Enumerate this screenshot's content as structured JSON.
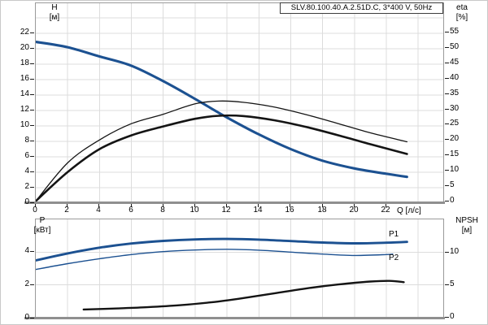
{
  "title_box": "SLV.80.100.40.A.2.51D.C, 3*400 V, 50Hz",
  "colors": {
    "curve_blue": "#1c5191",
    "curve_black": "#141414",
    "grid": "#dcdcdc",
    "plot_border": "#9a9a9a",
    "axis_gray": "#8f8f8f",
    "tick": "#1a1a1a",
    "background": "#ffffff"
  },
  "axes": {
    "h": {
      "title": "H",
      "unit": "[м]"
    },
    "eta": {
      "title": "eta",
      "unit": "[%]"
    },
    "q": {
      "title": "Q [л/с]"
    },
    "p": {
      "title": "P",
      "unit": "[кВт]"
    },
    "npsh": {
      "title": "NPSH",
      "unit": "[м]"
    }
  },
  "series_labels": {
    "p1": "P1",
    "p2": "P2"
  },
  "chart_data": [
    {
      "type": "line",
      "title": "SLV.80.100.40.A.2.51D.C, 3*400 V, 50Hz",
      "xlabel": "Q [л/с]",
      "x_range": [
        0,
        25.7
      ],
      "x_ticks": [
        0,
        2,
        4,
        6,
        8,
        10,
        12,
        14,
        16,
        18,
        20,
        22
      ],
      "grid": true,
      "left_axis": {
        "label": "H [м]",
        "lim": [
          0,
          25.9
        ],
        "ticks": [
          0,
          2,
          4,
          6,
          8,
          10,
          12,
          14,
          16,
          18,
          20,
          22
        ]
      },
      "right_axis": {
        "label": "eta [%]",
        "lim": [
          0,
          64.7
        ],
        "ticks": [
          0,
          5,
          10,
          15,
          20,
          25,
          30,
          35,
          40,
          45,
          50,
          55
        ]
      },
      "series": [
        {
          "name": "H",
          "axis": "left",
          "color": "#1c5191",
          "stroke_width": 3.1,
          "points": [
            [
              0,
              20.9
            ],
            [
              2,
              20.2
            ],
            [
              4,
              19.0
            ],
            [
              6,
              17.8
            ],
            [
              8,
              15.8
            ],
            [
              10,
              13.5
            ],
            [
              12,
              11.1
            ],
            [
              14,
              8.9
            ],
            [
              16,
              7.0
            ],
            [
              18,
              5.5
            ],
            [
              20,
              4.5
            ],
            [
              22,
              3.8
            ],
            [
              23.3,
              3.4
            ]
          ]
        },
        {
          "name": "eta-thin",
          "axis": "right",
          "color": "#141414",
          "stroke_width": 1.3,
          "points": [
            [
              0,
              0
            ],
            [
              2,
              12.5
            ],
            [
              4,
              20.0
            ],
            [
              6,
              25.3
            ],
            [
              8,
              28.4
            ],
            [
              10,
              31.8
            ],
            [
              11.5,
              32.7
            ],
            [
              13,
              32.3
            ],
            [
              15,
              30.7
            ],
            [
              17,
              28.2
            ],
            [
              19,
              25.3
            ],
            [
              21,
              22.3
            ],
            [
              23.3,
              19.4
            ]
          ]
        },
        {
          "name": "eta-thick",
          "axis": "right",
          "color": "#141414",
          "stroke_width": 2.6,
          "points": [
            [
              0,
              0
            ],
            [
              2,
              9.5
            ],
            [
              4,
              17.0
            ],
            [
              6,
              21.5
            ],
            [
              8,
              24.4
            ],
            [
              10,
              26.9
            ],
            [
              11.5,
              27.9
            ],
            [
              13,
              27.8
            ],
            [
              15,
              26.4
            ],
            [
              17,
              24.2
            ],
            [
              19,
              21.5
            ],
            [
              21,
              18.6
            ],
            [
              23.3,
              15.4
            ]
          ]
        }
      ]
    },
    {
      "type": "line",
      "title": "",
      "xlabel": "",
      "x_range": [
        0,
        25.7
      ],
      "x_ticks": [],
      "grid": true,
      "left_axis": {
        "label": "P [кВт]",
        "lim": [
          0,
          6.0
        ],
        "ticks": [
          0,
          2,
          4
        ]
      },
      "right_axis": {
        "label": "NPSH [м]",
        "lim": [
          0,
          15.1
        ],
        "ticks": [
          0,
          5,
          10
        ]
      },
      "series": [
        {
          "name": "P1",
          "axis": "left",
          "color": "#1c5191",
          "stroke_width": 2.9,
          "points": [
            [
              0,
              3.5
            ],
            [
              2,
              3.92
            ],
            [
              4,
              4.27
            ],
            [
              6,
              4.52
            ],
            [
              8,
              4.68
            ],
            [
              10,
              4.77
            ],
            [
              12,
              4.8
            ],
            [
              14,
              4.76
            ],
            [
              16,
              4.67
            ],
            [
              18,
              4.58
            ],
            [
              20,
              4.53
            ],
            [
              22,
              4.57
            ],
            [
              23.3,
              4.62
            ]
          ]
        },
        {
          "name": "P2",
          "axis": "left",
          "color": "#1c5191",
          "stroke_width": 1.4,
          "points": [
            [
              0,
              2.95
            ],
            [
              2,
              3.3
            ],
            [
              4,
              3.6
            ],
            [
              6,
              3.85
            ],
            [
              8,
              4.03
            ],
            [
              10,
              4.13
            ],
            [
              12,
              4.17
            ],
            [
              14,
              4.12
            ],
            [
              16,
              4.0
            ],
            [
              18,
              3.88
            ],
            [
              20,
              3.8
            ],
            [
              22,
              3.85
            ],
            [
              22.4,
              3.88
            ]
          ]
        },
        {
          "name": "NPSH",
          "axis": "right",
          "color": "#141414",
          "stroke_width": 2.4,
          "points": [
            [
              3,
              1.2
            ],
            [
              5,
              1.35
            ],
            [
              7,
              1.55
            ],
            [
              9,
              1.85
            ],
            [
              11,
              2.3
            ],
            [
              13,
              2.95
            ],
            [
              15,
              3.7
            ],
            [
              17,
              4.45
            ],
            [
              19,
              5.05
            ],
            [
              21,
              5.5
            ],
            [
              22.2,
              5.6
            ],
            [
              23.1,
              5.4
            ]
          ]
        }
      ]
    }
  ]
}
